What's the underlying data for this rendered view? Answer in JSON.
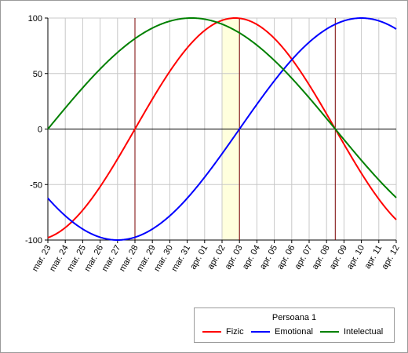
{
  "chart_data": {
    "type": "line",
    "title": "",
    "xlabel": "",
    "ylabel": "",
    "ylim": [
      -100,
      100
    ],
    "yticks": [
      100,
      50,
      0,
      -50,
      -100
    ],
    "x_tick_labels": [
      "mar. 23",
      "mar. 24",
      "mar. 25",
      "mar. 26",
      "mar. 27",
      "mar. 28",
      "mar. 29",
      "mar. 30",
      "mar. 31",
      "apr. 01",
      "apr. 02",
      "apr. 03",
      "apr. 04",
      "apr. 05",
      "apr. 06",
      "apr. 07",
      "apr. 08",
      "apr. 09",
      "apr. 10",
      "apr. 11",
      "apr. 12"
    ],
    "grid": true,
    "highlight_band": {
      "from": "apr. 02",
      "to": "apr. 03",
      "color": "#ffffdd"
    },
    "vertical_markers": [
      "mar. 28",
      "apr. 03",
      "apr. 08 12:00"
    ],
    "marker_color": "#7a0000",
    "legend": {
      "title": "Persoana 1",
      "placement": "bottom-right"
    },
    "series": [
      {
        "name": "Fizic",
        "color": "#ff0000",
        "period_days": 23,
        "zero_day_offset": 5
      },
      {
        "name": "Emotional",
        "color": "#0000ff",
        "period_days": 28,
        "zero_day_offset": 11
      },
      {
        "name": "Intelectual",
        "color": "#008000",
        "period_days": 33,
        "zero_day_offset": 0
      }
    ]
  }
}
